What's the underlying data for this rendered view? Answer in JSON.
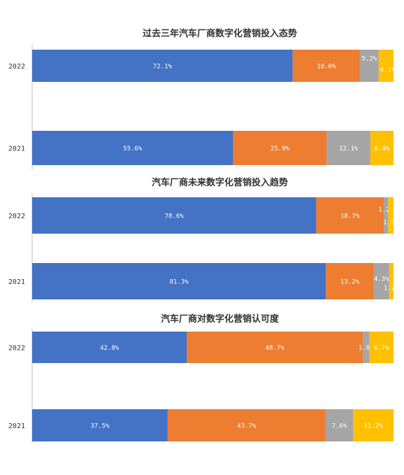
{
  "colors": {
    "blue": "#4472C4",
    "orange": "#ED7D31",
    "gray": "#A5A5A5",
    "yellow": "#FFC000"
  },
  "chart_data": [
    {
      "type": "bar",
      "orientation": "horizontal-stacked-100",
      "title": "过去三年汽车厂商数字化营销投入态势",
      "categories": [
        "2022",
        "2021"
      ],
      "series": [
        {
          "values": [
            72.1,
            55.6
          ],
          "labels": [
            "72.1%",
            "55.6%"
          ]
        },
        {
          "values": [
            18.6,
            25.9
          ],
          "labels": [
            "18.6%",
            "25.9%"
          ]
        },
        {
          "values": [
            5.2,
            12.1
          ],
          "labels": [
            "5.2%",
            "12.1%"
          ]
        },
        {
          "values": [
            4.1,
            6.4
          ],
          "labels": [
            "4.1%",
            "6.4%"
          ]
        }
      ],
      "xlim": [
        0,
        100
      ]
    },
    {
      "type": "bar",
      "orientation": "horizontal-stacked-100",
      "title": "汽车厂商未来数字化营销投入趋势",
      "categories": [
        "2022",
        "2021"
      ],
      "series": [
        {
          "values": [
            78.6,
            81.3
          ],
          "labels": [
            "78.6%",
            "81.3%"
          ]
        },
        {
          "values": [
            18.7,
            13.2
          ],
          "labels": [
            "18.7%",
            "13.2%"
          ]
        },
        {
          "values": [
            1.2,
            4.3
          ],
          "labels": [
            "1.2%",
            "4.3%"
          ]
        },
        {
          "values": [
            1.5,
            1.2
          ],
          "labels": [
            "1.5%",
            "1.2%"
          ]
        }
      ],
      "xlim": [
        0,
        100
      ]
    },
    {
      "type": "bar",
      "orientation": "horizontal-stacked-100",
      "title": "汽车厂商对数字化营销认可度",
      "categories": [
        "2022",
        "2021"
      ],
      "series": [
        {
          "values": [
            42.8,
            37.5
          ],
          "labels": [
            "42.8%",
            "37.5%"
          ]
        },
        {
          "values": [
            48.7,
            43.7
          ],
          "labels": [
            "48.7%",
            "43.7%"
          ]
        },
        {
          "values": [
            1.8,
            7.6
          ],
          "labels": [
            "1.8%",
            "7.6%"
          ]
        },
        {
          "values": [
            6.7,
            11.2
          ],
          "labels": [
            "6.7%",
            "11.2%"
          ]
        }
      ],
      "xlim": [
        0,
        100
      ]
    }
  ]
}
